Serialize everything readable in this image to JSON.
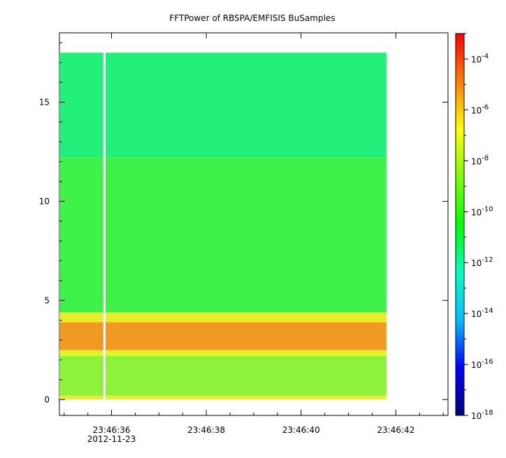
{
  "chart_data": {
    "type": "heatmap",
    "title": "FFTPower of RBSPA/EMFISIS  BuSamples",
    "xlabel": "",
    "ylabel": "",
    "x_ticks": [
      {
        "value": "23:46:36",
        "sublabel": "2012-11-23"
      },
      {
        "value": "23:46:38",
        "sublabel": ""
      },
      {
        "value": "23:46:40",
        "sublabel": ""
      },
      {
        "value": "23:46:42",
        "sublabel": ""
      }
    ],
    "xlim_seconds_after_2346": [
      34.9,
      43.1
    ],
    "data_x_range_seconds_after_2346": [
      34.9,
      41.8
    ],
    "gap_at_seconds_after_2346": 35.85,
    "ylim": [
      -0.8,
      18.5
    ],
    "y_ticks": [
      0,
      5,
      10,
      15
    ],
    "data_y_range": [
      0,
      17.5
    ],
    "bands": [
      {
        "from": 0.0,
        "to": 0.2,
        "level": "yellow"
      },
      {
        "from": 0.2,
        "to": 2.2,
        "level": "yellow-green"
      },
      {
        "from": 2.2,
        "to": 2.5,
        "level": "yellow"
      },
      {
        "from": 2.5,
        "to": 3.9,
        "level": "orange-red"
      },
      {
        "from": 3.9,
        "to": 4.4,
        "level": "yellow"
      },
      {
        "from": 4.4,
        "to": 12.2,
        "level": "green"
      },
      {
        "from": 12.2,
        "to": 17.5,
        "level": "teal-green"
      }
    ],
    "colorbar": {
      "scale": "log",
      "range": [
        "1e-18",
        "1e-3"
      ],
      "ticks": [
        {
          "base": "10",
          "exp": "-4"
        },
        {
          "base": "10",
          "exp": "-6"
        },
        {
          "base": "10",
          "exp": "-8"
        },
        {
          "base": "10",
          "exp": "-10"
        },
        {
          "base": "10",
          "exp": "-12"
        },
        {
          "base": "10",
          "exp": "-14"
        },
        {
          "base": "10",
          "exp": "-16"
        },
        {
          "base": "10",
          "exp": "-18"
        }
      ],
      "colors": [
        "#00007f",
        "#0000ff",
        "#00bfff",
        "#00ffbf",
        "#00ff00",
        "#7fff00",
        "#ffff00",
        "#ff7f00",
        "#ff0000"
      ]
    }
  }
}
